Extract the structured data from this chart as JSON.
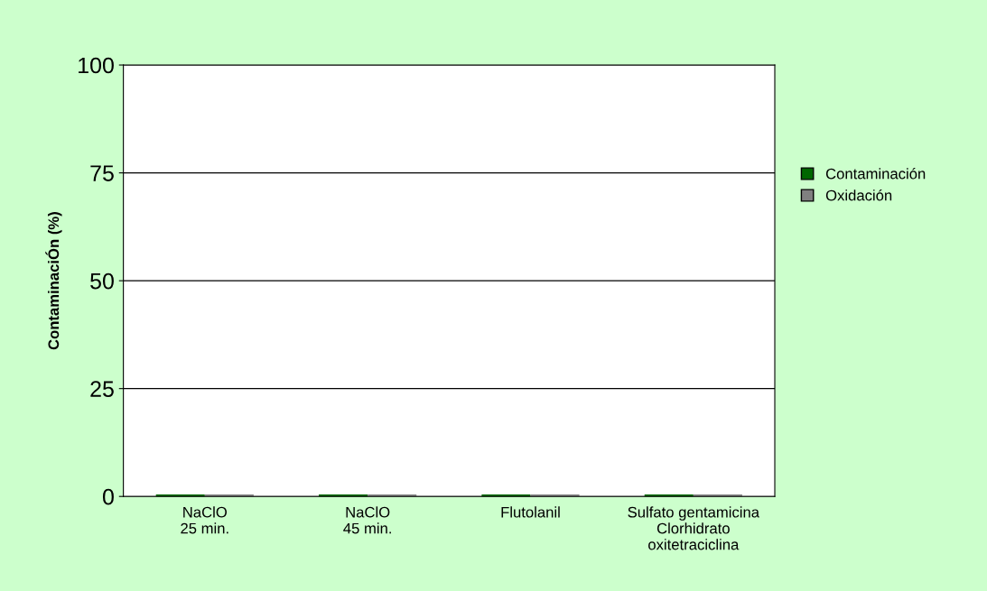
{
  "chart_data": {
    "type": "bar",
    "ylabel": "ContaminaciÓn (%)",
    "categories": [
      "NaClO\n25 min.",
      "NaClO\n45 min.",
      "Flutolanil",
      "Sulfato gentamicina\nClorhidrato\noxitetraciclina"
    ],
    "series": [
      {
        "name": "Contaminación",
        "color": "#006600",
        "values": [
          0,
          0,
          0,
          0
        ]
      },
      {
        "name": "Oxidación",
        "color": "#808080",
        "values": [
          0,
          0,
          0,
          0
        ]
      }
    ],
    "ylim": [
      0,
      100
    ],
    "yticks": [
      0,
      25,
      50,
      75,
      100
    ],
    "grid": "y",
    "legend": "right"
  }
}
